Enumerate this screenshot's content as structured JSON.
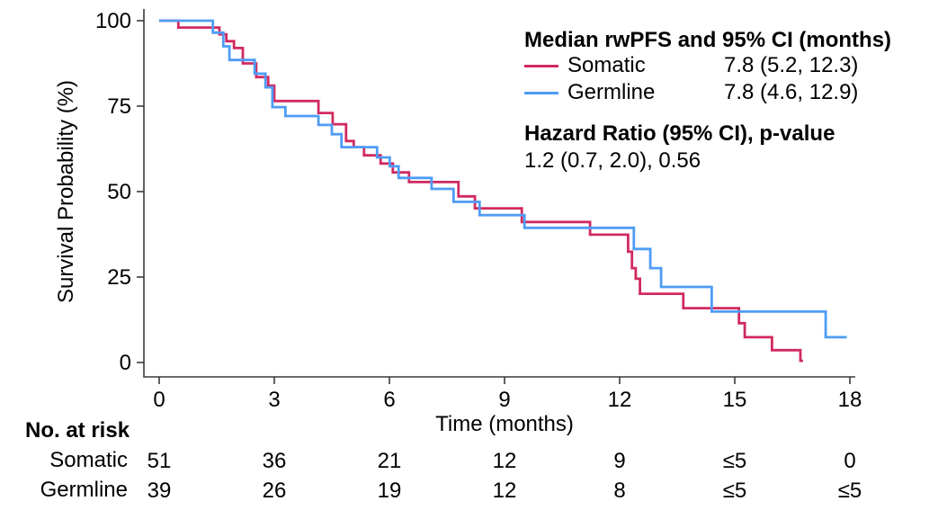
{
  "figure": {
    "y_axis": {
      "label": "Survival Probability (%)",
      "ticks": [
        0,
        25,
        50,
        75,
        100
      ]
    },
    "x_axis": {
      "label": "Time (months)",
      "ticks": [
        0,
        3,
        6,
        9,
        12,
        15,
        18
      ]
    },
    "legend": {
      "title": "Median rwPFS and 95% CI (months)",
      "entries": [
        {
          "label": "Somatic",
          "median": "7.8 (5.2, 12.3)",
          "color": "#D12A5E"
        },
        {
          "label": "Germline",
          "median": "7.8 (4.6, 12.9)",
          "color": "#4F9CF4"
        }
      ],
      "hazard_title": "Hazard Ratio (95% CI), p-value",
      "hazard_value": "1.2 (0.7, 2.0), 0.56"
    },
    "risk_table": {
      "header": "No. at risk",
      "rows": [
        {
          "label": "Somatic",
          "values": [
            "51",
            "36",
            "21",
            "12",
            "9",
            "≤5",
            "0"
          ]
        },
        {
          "label": "Germline",
          "values": [
            "39",
            "26",
            "19",
            "12",
            "8",
            "≤5",
            "≤5"
          ]
        }
      ]
    }
  },
  "chart_data": {
    "type": "line",
    "subtype": "kaplan-meier-step",
    "title": "",
    "xlabel": "Time (months)",
    "ylabel": "Survival Probability (%)",
    "xlim": [
      0,
      18
    ],
    "ylim": [
      0,
      100
    ],
    "grid": false,
    "legend_position": "top-right",
    "series": [
      {
        "name": "Somatic",
        "color": "#D12A5E",
        "end_time": 16.78,
        "points": [
          [
            0,
            100
          ],
          [
            0.5,
            98
          ],
          [
            1.57,
            96
          ],
          [
            1.75,
            94
          ],
          [
            1.95,
            92
          ],
          [
            2.18,
            87.5
          ],
          [
            2.53,
            83.5
          ],
          [
            2.84,
            81
          ],
          [
            3.0,
            76.5
          ],
          [
            4.15,
            73
          ],
          [
            4.52,
            69.7
          ],
          [
            4.87,
            64.8
          ],
          [
            5.07,
            63
          ],
          [
            5.34,
            60.6
          ],
          [
            5.77,
            58.2
          ],
          [
            6.09,
            55.6
          ],
          [
            6.51,
            52.8
          ],
          [
            7.8,
            48.6
          ],
          [
            8.23,
            45.1
          ],
          [
            9.45,
            41.1
          ],
          [
            11.23,
            37.4
          ],
          [
            12.22,
            32.4
          ],
          [
            12.32,
            27.6
          ],
          [
            12.42,
            24.5
          ],
          [
            12.53,
            20.1
          ],
          [
            13.66,
            15.9
          ],
          [
            15.11,
            11.5
          ],
          [
            15.26,
            7.4
          ],
          [
            15.97,
            3.6
          ],
          [
            16.71,
            0.5
          ]
        ]
      },
      {
        "name": "Germline",
        "color": "#4F9CF4",
        "end_time": 17.92,
        "points": [
          [
            0,
            100
          ],
          [
            1.4,
            96.5
          ],
          [
            1.67,
            92.5
          ],
          [
            1.83,
            88.5
          ],
          [
            2.49,
            84.5
          ],
          [
            2.77,
            80.5
          ],
          [
            2.95,
            74.7
          ],
          [
            3.29,
            72.1
          ],
          [
            4.15,
            69.5
          ],
          [
            4.5,
            66.8
          ],
          [
            4.75,
            63
          ],
          [
            5.68,
            60
          ],
          [
            6.01,
            57.4
          ],
          [
            6.24,
            54
          ],
          [
            7.1,
            50.8
          ],
          [
            7.67,
            47
          ],
          [
            8.35,
            43.1
          ],
          [
            9.52,
            39.4
          ],
          [
            12.37,
            33.2
          ],
          [
            12.8,
            27.6
          ],
          [
            13.08,
            22.1
          ],
          [
            14.4,
            14.9
          ],
          [
            17.37,
            7.4
          ]
        ]
      }
    ]
  }
}
